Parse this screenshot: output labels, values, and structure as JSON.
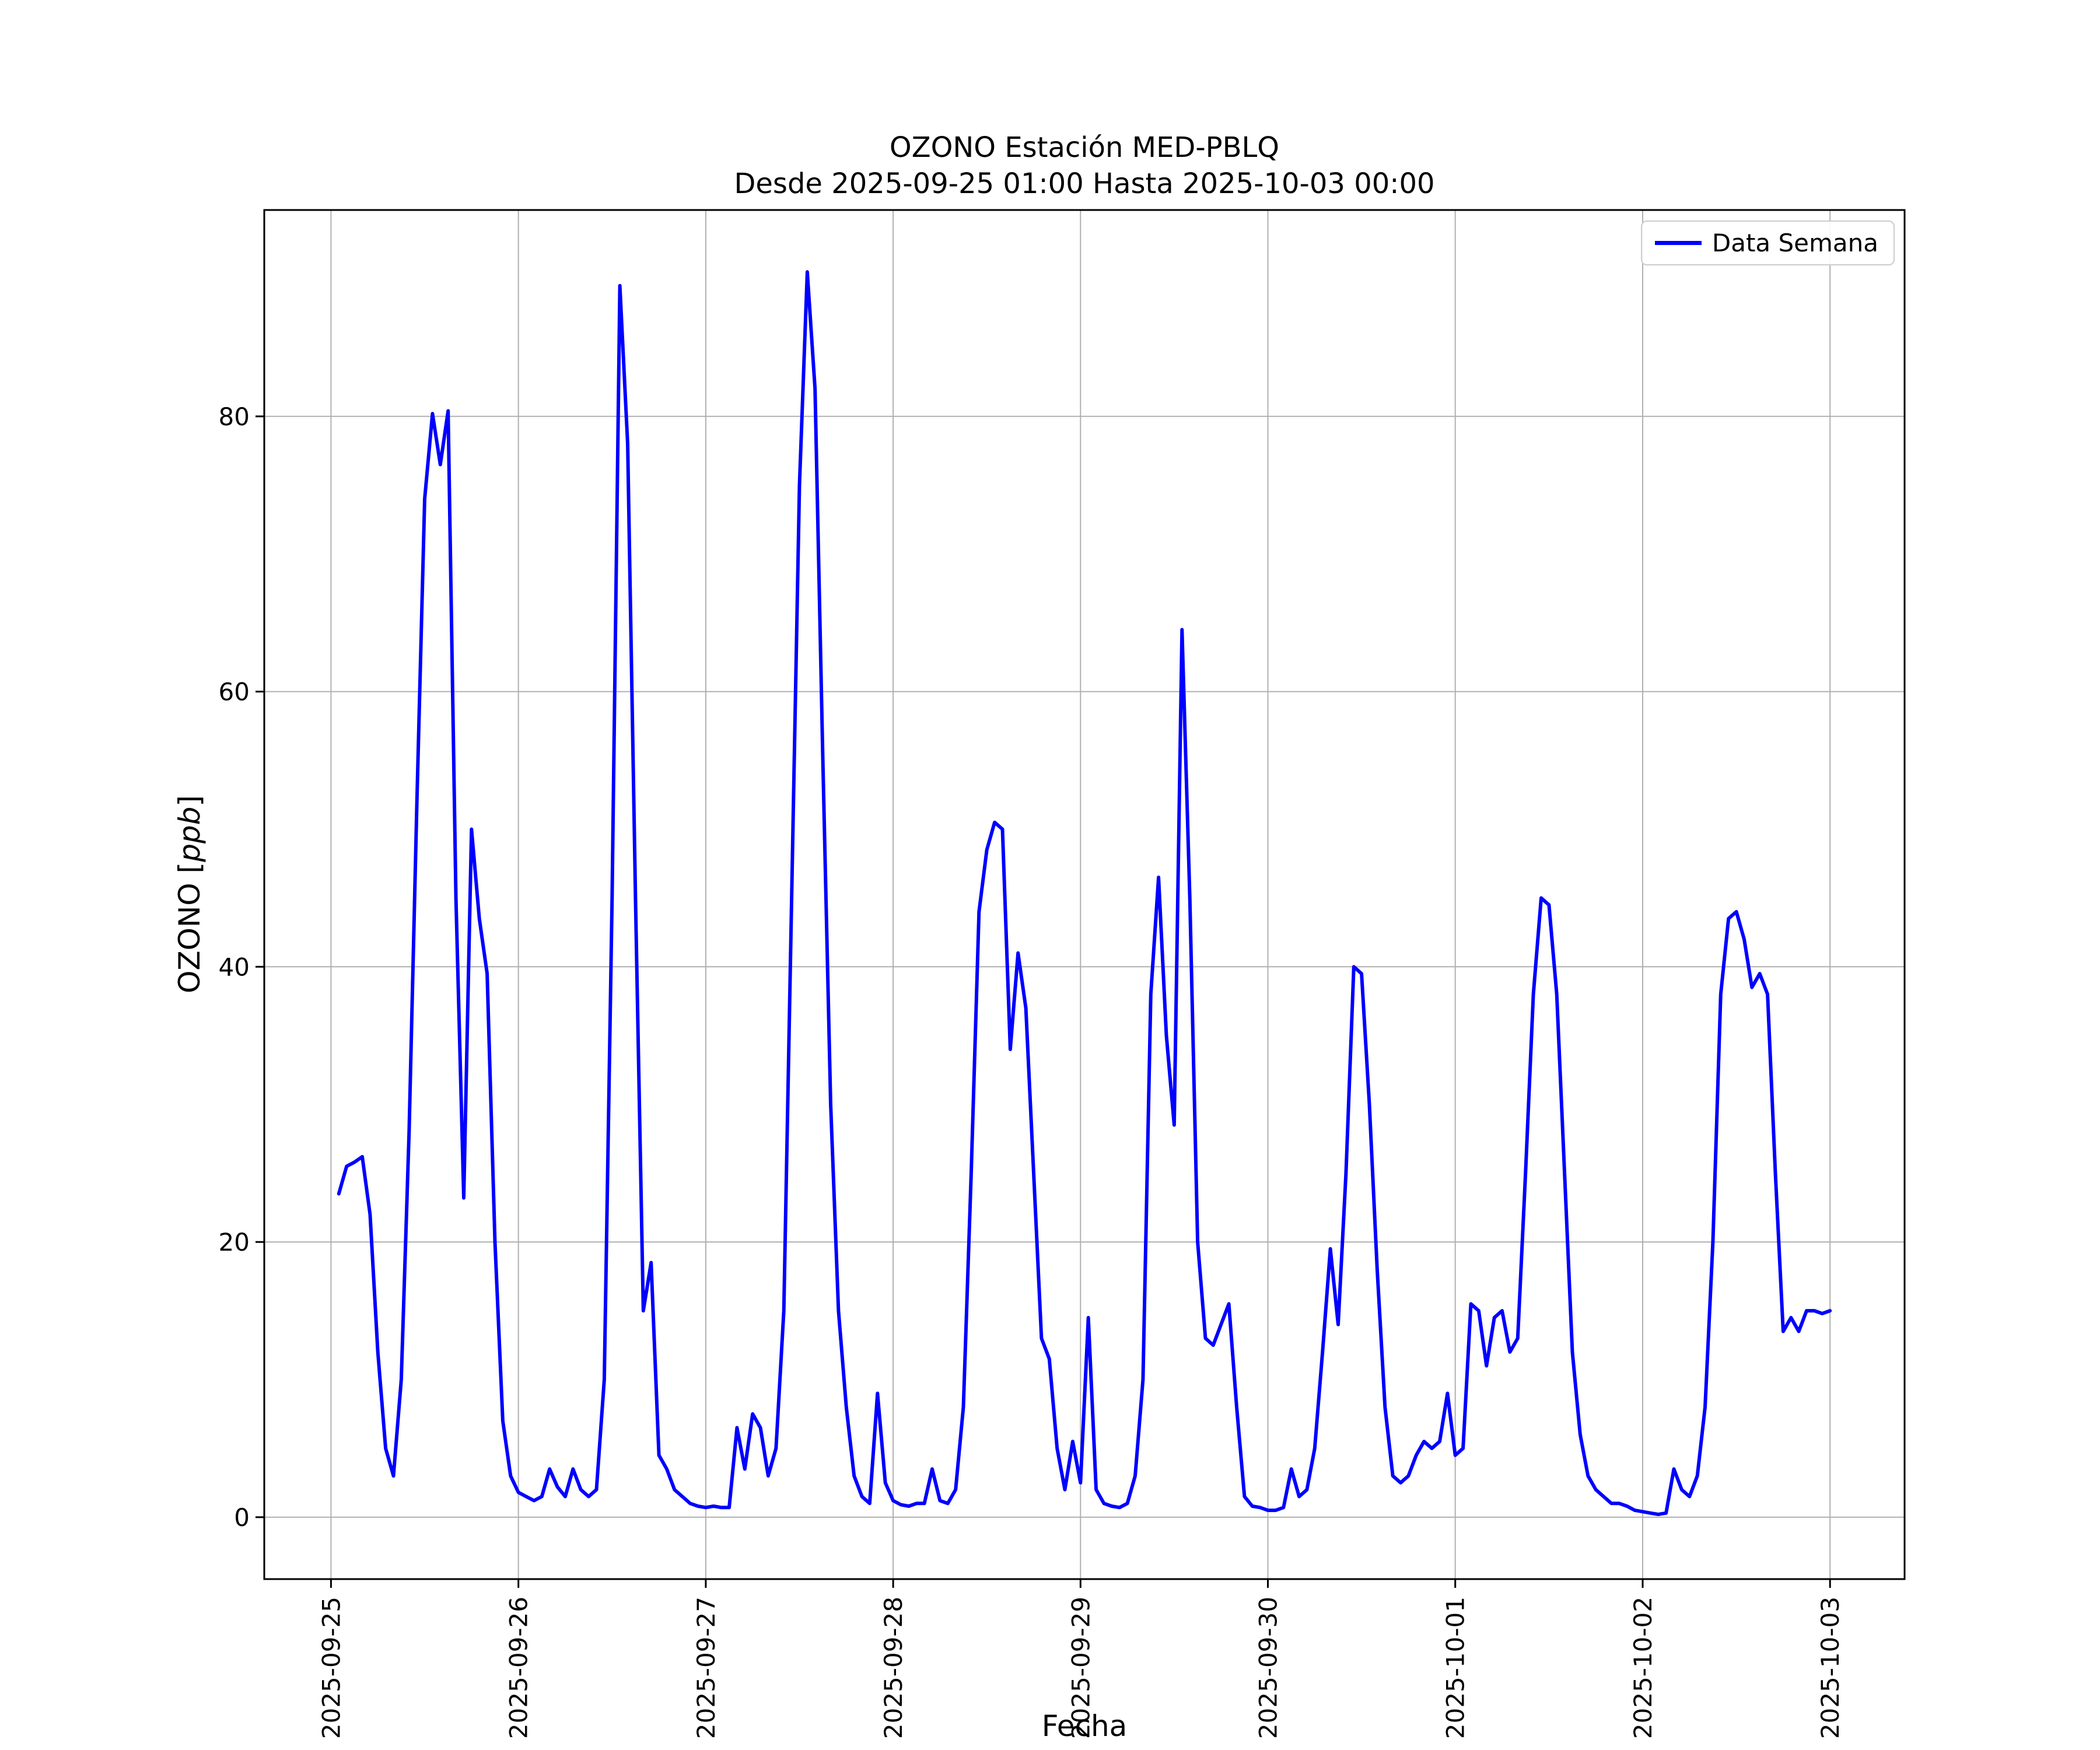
{
  "title": {
    "line1": "OZONO Estación MED-PBLQ",
    "line2": "Desde 2025-09-25 01:00 Hasta 2025-10-03 00:00"
  },
  "axes": {
    "xlabel": "Fecha",
    "ylabel_prefix": "OZONO [",
    "ylabel_unit": "ppb",
    "ylabel_suffix": "]"
  },
  "legend": {
    "label": "Data Semana"
  },
  "colors": {
    "line": "#0000ff",
    "grid": "#b0b0b0",
    "spine": "#000000",
    "legend_edge": "#cccccc"
  },
  "chart_data": {
    "type": "line",
    "title": "OZONO Estación MED-PBLQ",
    "subtitle": "Desde 2025-09-25 01:00 Hasta 2025-10-03 00:00",
    "xlabel": "Fecha",
    "ylabel": "OZONO [ppb]",
    "x_start": "2025-09-25 01:00",
    "x_end": "2025-10-03 00:00",
    "x_interval_hours": 1,
    "x_tick_labels": [
      "2025-09-25",
      "2025-09-26",
      "2025-09-27",
      "2025-09-28",
      "2025-09-29",
      "2025-09-30",
      "2025-10-01",
      "2025-10-02",
      "2025-10-03"
    ],
    "x_tick_hour_offsets": [
      -1,
      23,
      47,
      71,
      95,
      119,
      143,
      167,
      191
    ],
    "y_ticks": [
      0,
      20,
      40,
      60,
      80
    ],
    "ylim": [
      -4.5,
      95
    ],
    "grid": true,
    "legend_position": "upper right",
    "series": [
      {
        "name": "Data Semana",
        "color": "#0000ff",
        "values": [
          23.5,
          25.5,
          25.8,
          26.2,
          22,
          12,
          5,
          3,
          10,
          28,
          52,
          74,
          80.2,
          76.5,
          80.4,
          45,
          23.2,
          50,
          43.5,
          39.5,
          20,
          7,
          3,
          1.8,
          1.5,
          1.2,
          1.5,
          3.5,
          2.2,
          1.5,
          3.5,
          2,
          1.5,
          2,
          10,
          45,
          89.5,
          78,
          45,
          15,
          18.5,
          4.5,
          3.5,
          2,
          1.5,
          1,
          0.8,
          0.7,
          0.8,
          0.7,
          0.7,
          6.5,
          3.5,
          7.5,
          6.5,
          3,
          5,
          15,
          45,
          75,
          90.5,
          82,
          55,
          30,
          15,
          8,
          3,
          1.5,
          1,
          9,
          2.5,
          1.2,
          0.9,
          0.8,
          1,
          1,
          3.5,
          1.2,
          1,
          2,
          8,
          25,
          44,
          48.5,
          50.5,
          50,
          34,
          41,
          37,
          25,
          13,
          11.5,
          5,
          2,
          5.5,
          2.5,
          14.5,
          2,
          1,
          0.8,
          0.7,
          1,
          3,
          10,
          38,
          46.5,
          35,
          28.5,
          64.5,
          45,
          20,
          13,
          12.5,
          14,
          15.5,
          8,
          1.5,
          0.8,
          0.7,
          0.5,
          0.5,
          0.7,
          3.5,
          1.5,
          2,
          5,
          12,
          19.5,
          14,
          25,
          40,
          39.5,
          30,
          18,
          8,
          3,
          2.5,
          3,
          4.5,
          5.5,
          5,
          5.5,
          9,
          4.5,
          5,
          15.5,
          15,
          11,
          14.5,
          15,
          12,
          13,
          25,
          38,
          45,
          44.5,
          38,
          25,
          12,
          6,
          3,
          2,
          1.5,
          1,
          1,
          0.8,
          0.5,
          0.4,
          0.3,
          0.2,
          0.3,
          3.5,
          2,
          1.5,
          3,
          8,
          20,
          38,
          43.5,
          44,
          42,
          38.5,
          39.5,
          38,
          25,
          13.5,
          14.5,
          13.5,
          15,
          15,
          14.8,
          15
        ]
      }
    ]
  }
}
